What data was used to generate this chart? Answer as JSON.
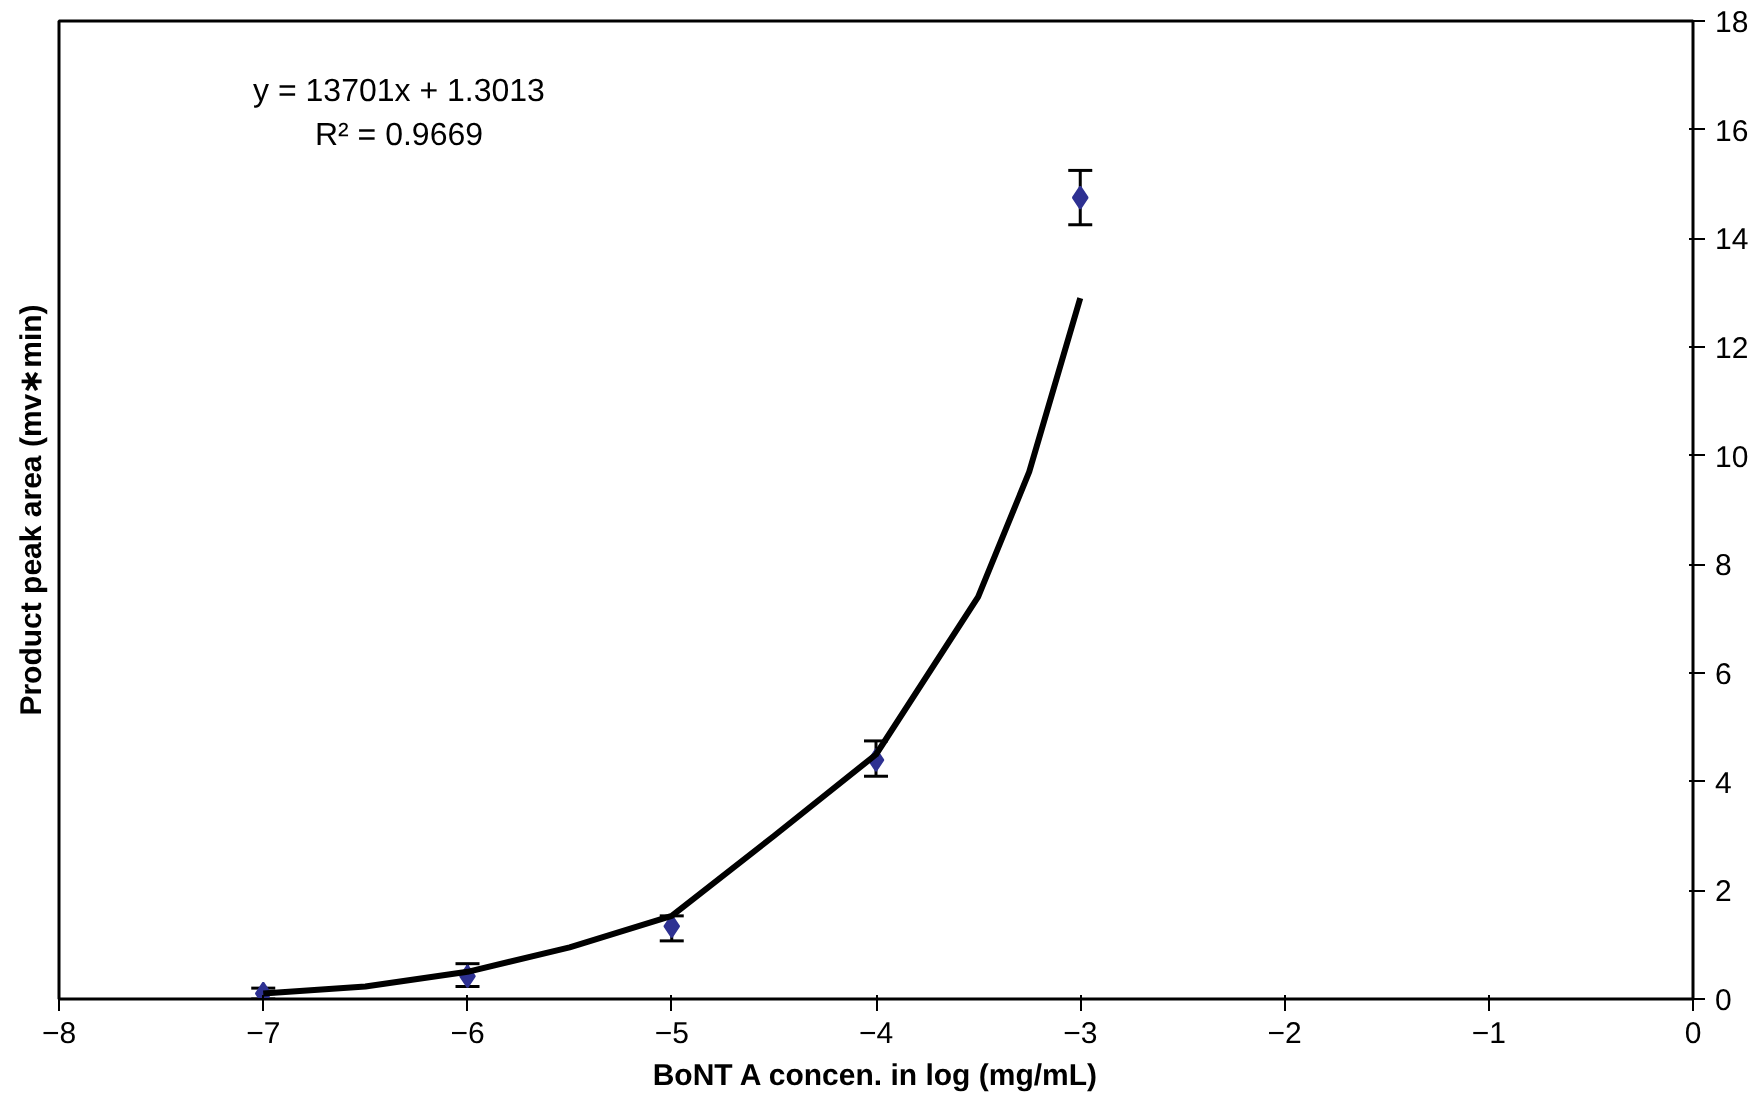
{
  "chart_data": {
    "type": "scatter",
    "xlabel": "BoNT A concen. in log (mg/mL)",
    "ylabel": "Product peak area (mv∗min)",
    "annotations": [
      "y = 13701x + 1.3013",
      "R² = 0.9669"
    ],
    "series": [
      {
        "color": "#2e3192",
        "marker": "diamond",
        "x": [
          -7,
          -6,
          -5,
          -4,
          -3
        ],
        "values": [
          0.1,
          0.42,
          1.34,
          4.4,
          14.75
        ],
        "errors": [
          0.1,
          [
            0.23,
            0.65
          ],
          [
            1.07,
            1.53
          ],
          [
            4.1,
            4.75
          ],
          [
            14.25,
            15.25
          ]
        ]
      },
      {
        "type": "line",
        "color": "#000000",
        "x": [
          -7,
          -6.5,
          -6,
          -5.5,
          -5,
          -4.5,
          -4,
          -3.5,
          -3.25,
          -3
        ],
        "values": [
          0.1,
          0.23,
          0.5,
          0.95,
          1.53,
          3.0,
          4.5,
          7.4,
          9.7,
          12.9
        ]
      }
    ],
    "xlim": [
      -8,
      0
    ],
    "ylim": [
      0,
      18
    ],
    "xticks": [
      -8,
      -7,
      -6,
      -5,
      -4,
      -3,
      -2,
      -1,
      0
    ],
    "yticks": [
      0,
      2,
      4,
      6,
      8,
      10,
      12,
      14,
      16,
      18
    ],
    "grid": false
  }
}
